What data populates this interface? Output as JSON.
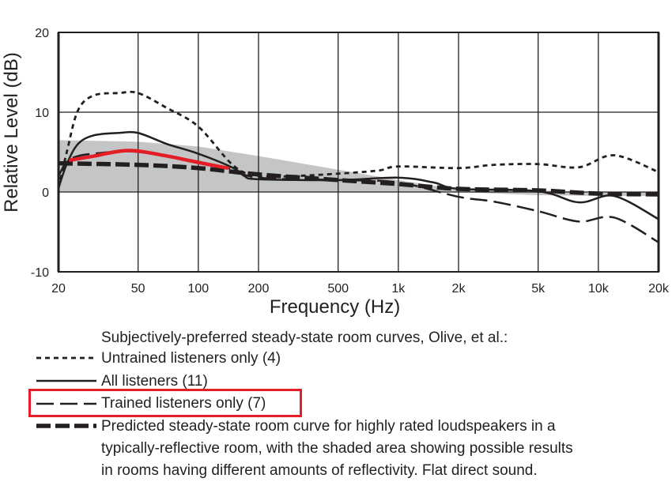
{
  "chart_data": {
    "type": "line",
    "xscale": "log",
    "xlabel": "Frequency (Hz)",
    "ylabel": "Relative Level (dB)",
    "xlim": [
      20,
      20000
    ],
    "ylim": [
      -10,
      20
    ],
    "grid": true,
    "x_ticks": [
      20,
      50,
      100,
      200,
      500,
      1000,
      2000,
      5000,
      10000,
      20000
    ],
    "x_tick_labels": [
      "20",
      "50",
      "100",
      "200",
      "500",
      "1k",
      "2k",
      "5k",
      "10k",
      "20k"
    ],
    "y_ticks": [
      20,
      10,
      0,
      -10
    ],
    "y_tick_labels": [
      "20",
      "10",
      "0",
      "-10"
    ],
    "legend_title": "Subjectively-preferred steady-state room curves, Olive, et al.:",
    "series": [
      {
        "name": "Untrained listeners only (4)",
        "style": "dotted",
        "x": [
          20,
          22,
          25,
          30,
          40,
          50,
          70,
          100,
          150,
          200,
          300,
          500,
          800,
          1000,
          2000,
          3000,
          5000,
          8000,
          12000,
          20000
        ],
        "y": [
          0.5,
          5,
          10.2,
          12.1,
          12.4,
          12.4,
          10.5,
          8.2,
          3.3,
          2.0,
          2.0,
          2.3,
          2.7,
          3.2,
          3.0,
          3.4,
          3.5,
          3.1,
          4.6,
          2.5
        ]
      },
      {
        "name": "All listeners (11)",
        "style": "solid",
        "x": [
          20,
          22,
          25,
          30,
          40,
          50,
          70,
          100,
          150,
          170,
          200,
          500,
          1000,
          1500,
          2000,
          5000,
          8000,
          12000,
          20000
        ],
        "y": [
          0.5,
          3.5,
          6.0,
          7.1,
          7.4,
          7.4,
          6.0,
          4.8,
          3.0,
          2.0,
          1.6,
          1.5,
          1.8,
          1.2,
          0.4,
          0.1,
          -1.3,
          -0.5,
          -3.4
        ]
      },
      {
        "name": "Trained listeners only (7)",
        "style": "long-dash",
        "x": [
          20,
          22,
          25,
          30,
          45,
          70,
          100,
          140,
          200,
          500,
          1000,
          2000,
          3000,
          5000,
          8000,
          12000,
          20000
        ],
        "y": [
          2.0,
          3.8,
          4.5,
          4.8,
          5.1,
          4.5,
          3.8,
          3.0,
          1.8,
          1.5,
          1.2,
          -0.6,
          -1.2,
          -2.4,
          -3.7,
          -3.2,
          -6.3
        ]
      },
      {
        "name": "Predicted steady-state room curve for highly rated loudspeakers in a typically-reflective room, with the shaded area showing possible results in rooms having different amounts of reflectivity.  Flat direct sound.",
        "style": "thick-dash",
        "x": [
          20,
          50,
          100,
          200,
          500,
          1000,
          2000,
          5000,
          10000,
          20000
        ],
        "y": [
          3.6,
          3.4,
          3.0,
          2.2,
          1.5,
          1.0,
          0.4,
          0.2,
          -0.2,
          -0.3
        ]
      }
    ],
    "shaded_area": {
      "x": [
        20,
        50,
        100,
        200,
        500,
        1000,
        2000,
        5000,
        10000,
        20000
      ],
      "upper": [
        6.5,
        6.3,
        5.7,
        4.5,
        2.8,
        1.5,
        0.3,
        0.2,
        0.0,
        0.0
      ],
      "lower": [
        0,
        0,
        0,
        0,
        0,
        0,
        0,
        -0.4,
        -0.5,
        -0.5
      ]
    },
    "highlight_annotation": {
      "x": [
        23,
        30,
        45,
        70,
        100,
        140
      ],
      "y": [
        4.0,
        4.5,
        5.2,
        4.5,
        3.7,
        3.0
      ],
      "color": "#e31e26"
    },
    "highlighted_legend_entry": "Trained listeners only (7)"
  },
  "legend_lines": [
    "typically-reflective room, with the shaded area showing possible results",
    "in rooms having different amounts of reflectivity.  Flat direct sound."
  ],
  "legend_first_line": "Predicted steady-state room curve for highly rated loudspeakers in a"
}
